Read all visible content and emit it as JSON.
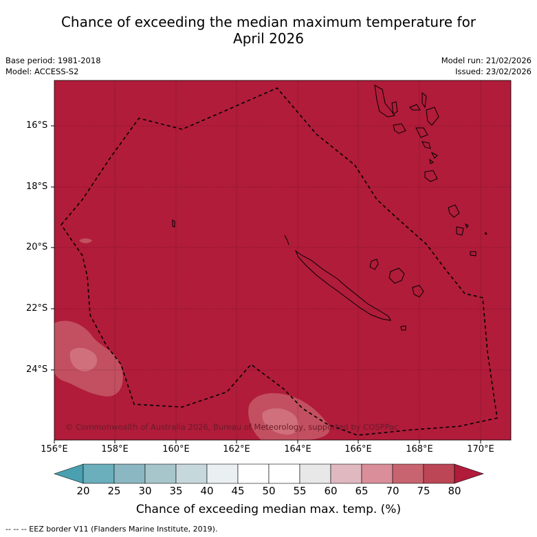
{
  "title_line1": "Chance of exceeding the median maximum temperature for",
  "title_line2": "April 2026",
  "base_period": "Base period: 1981-2018",
  "model": "Model: ACCESS-S2",
  "model_run": "Model run: 21/02/2026",
  "issued": "Issued: 23/02/2026",
  "copyright": "© Commonwealth of Australia 2026, Bureau of Meteorology, supported by COSPPac",
  "footnote": "--  --  -- EEZ border V11 (Flanders Marine Institute, 2019).",
  "colors": {
    "background_category": "#b01c3a",
    "eez_line": "#000000"
  },
  "map": {
    "lon_range": [
      156,
      171
    ],
    "lat_range": [
      -26.0,
      -14.5
    ],
    "lat_ticks": [
      "16°S",
      "18°S",
      "20°S",
      "22°S",
      "24°S"
    ],
    "lon_ticks": [
      "156°E",
      "158°E",
      "160°E",
      "162°E",
      "164°E",
      "166°E",
      "168°E",
      "170°E"
    ],
    "dominant_category": "75-80+"
  },
  "colorbar": {
    "label": "Chance of exceeding median max. temp. (%)",
    "ticks": [
      "20",
      "25",
      "30",
      "35",
      "40",
      "45",
      "50",
      "55",
      "60",
      "65",
      "70",
      "75",
      "80"
    ],
    "colors": [
      "#4aa0b0",
      "#6aafbb",
      "#8bb7c2",
      "#a7c6cc",
      "#c7d8dc",
      "#eaf0f2",
      "#ffffff",
      "#ffffff",
      "#e8e8e8",
      "#e0b8bf",
      "#d98e99",
      "#c8646f",
      "#bc4655",
      "#b01c3a"
    ]
  }
}
